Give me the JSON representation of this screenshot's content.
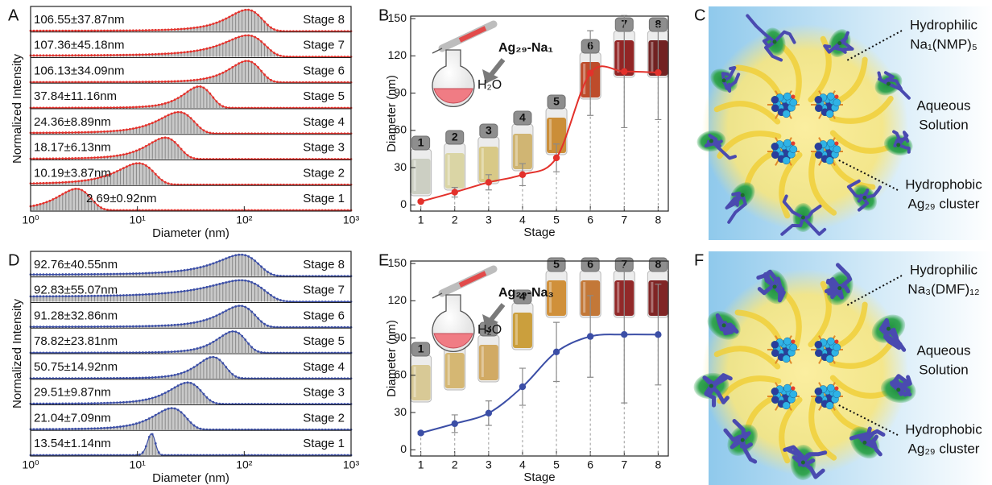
{
  "chart_data": [
    {
      "panel": "A",
      "type": "distribution",
      "color": "#e3312b",
      "xscale": "log",
      "xlim": [
        1,
        1000
      ],
      "xticks": [
        {
          "value": 1,
          "label": "10⁰"
        },
        {
          "value": 10,
          "label": "10¹"
        },
        {
          "value": 100,
          "label": "10²"
        },
        {
          "value": 1000,
          "label": "10³"
        }
      ],
      "xlabel": "Diameter (nm)",
      "ylabel": "Normalized Intensity",
      "series": [
        {
          "name": "Stage 8",
          "mean": 106.55,
          "sd": 37.87,
          "label": "106.55±37.87nm"
        },
        {
          "name": "Stage 7",
          "mean": 107.36,
          "sd": 45.18,
          "label": "107.36±45.18nm"
        },
        {
          "name": "Stage 6",
          "mean": 106.13,
          "sd": 34.09,
          "label": "106.13±34.09nm"
        },
        {
          "name": "Stage 5",
          "mean": 37.84,
          "sd": 11.16,
          "label": "37.84±11.16nm"
        },
        {
          "name": "Stage 4",
          "mean": 24.36,
          "sd": 8.89,
          "label": "24.36±8.89nm"
        },
        {
          "name": "Stage 3",
          "mean": 18.17,
          "sd": 6.13,
          "label": "18.17±6.13nm"
        },
        {
          "name": "Stage 2",
          "mean": 10.19,
          "sd": 3.87,
          "label": "10.19±3.87nm"
        },
        {
          "name": "Stage 1",
          "mean": 2.69,
          "sd": 0.92,
          "label": "2.69±0.92nm"
        }
      ]
    },
    {
      "panel": "B",
      "type": "line",
      "color": "#e3312b",
      "xlabel": "Stage",
      "ylabel": "Diameter (nm)",
      "x": [
        1,
        2,
        3,
        4,
        5,
        6,
        7,
        8
      ],
      "values": [
        2.69,
        10.19,
        18.17,
        24.36,
        37.84,
        106.13,
        107.36,
        106.55
      ],
      "errors": [
        0.92,
        3.87,
        6.13,
        8.89,
        11.16,
        34.09,
        45.18,
        37.87
      ],
      "xlim": [
        0.7,
        8.3
      ],
      "xticks": [
        1,
        2,
        3,
        4,
        5,
        6,
        7,
        8
      ],
      "ylim": [
        -5,
        152
      ],
      "yticks": [
        0,
        30,
        60,
        90,
        120,
        150
      ],
      "inset": {
        "precursor": "Ag₂₉-Na₁",
        "solvent": "H₂O"
      },
      "vial_colors": [
        "#c9ccbf",
        "#d8d29e",
        "#d6c67e",
        "#cdb068",
        "#c88628",
        "#b83e1a",
        "#8a1414",
        "#661010"
      ]
    },
    {
      "panel": "D",
      "type": "distribution",
      "color": "#3b4ea6",
      "xscale": "log",
      "xlim": [
        1,
        1000
      ],
      "xticks": [
        {
          "value": 1,
          "label": "10⁰"
        },
        {
          "value": 10,
          "label": "10¹"
        },
        {
          "value": 100,
          "label": "10²"
        },
        {
          "value": 1000,
          "label": "10³"
        }
      ],
      "xlabel": "Diameter (nm)",
      "ylabel": "Normalized Intensity",
      "series": [
        {
          "name": "Stage 8",
          "mean": 92.76,
          "sd": 40.55,
          "label": "92.76±40.55nm"
        },
        {
          "name": "Stage 7",
          "mean": 92.83,
          "sd": 55.07,
          "label": "92.83±55.07nm"
        },
        {
          "name": "Stage 6",
          "mean": 91.28,
          "sd": 32.86,
          "label": "91.28±32.86nm"
        },
        {
          "name": "Stage 5",
          "mean": 78.82,
          "sd": 23.81,
          "label": "78.82±23.81nm"
        },
        {
          "name": "Stage 4",
          "mean": 50.75,
          "sd": 14.92,
          "label": "50.75±14.92nm"
        },
        {
          "name": "Stage 3",
          "mean": 29.51,
          "sd": 9.87,
          "label": "29.51±9.87nm"
        },
        {
          "name": "Stage 2",
          "mean": 21.04,
          "sd": 7.09,
          "label": "21.04±7.09nm"
        },
        {
          "name": "Stage 1",
          "mean": 13.54,
          "sd": 1.14,
          "label": "13.54±1.14nm"
        }
      ]
    },
    {
      "panel": "E",
      "type": "line",
      "color": "#3b4ea6",
      "xlabel": "Stage",
      "ylabel": "Diameter (nm)",
      "x": [
        1,
        2,
        3,
        4,
        5,
        6,
        7,
        8
      ],
      "values": [
        13.54,
        21.04,
        29.51,
        50.75,
        78.82,
        91.28,
        92.83,
        92.76
      ],
      "errors": [
        1.14,
        7.09,
        9.87,
        14.92,
        23.81,
        32.86,
        55.07,
        40.55
      ],
      "xlim": [
        0.7,
        8.3
      ],
      "xticks": [
        1,
        2,
        3,
        4,
        5,
        6,
        7,
        8
      ],
      "ylim": [
        -5,
        152
      ],
      "yticks": [
        0,
        30,
        60,
        90,
        120,
        150
      ],
      "inset": {
        "precursor": "Ag₂₉-Na₃",
        "solvent": "H₂O"
      },
      "vial_colors": [
        "#d6c68e",
        "#d2b268",
        "#cea458",
        "#c8982e",
        "#cd882a",
        "#bf6e28",
        "#8a1818",
        "#761414"
      ]
    }
  ],
  "diagrams": [
    {
      "panel": "C",
      "ligand": [
        "Hydrophilic",
        "Na₁(NMP)₅"
      ],
      "medium": [
        "Aqueous",
        "Solution"
      ],
      "core": [
        "Hydrophobic",
        "Ag₂₉ cluster"
      ]
    },
    {
      "panel": "F",
      "ligand": [
        "Hydrophilic",
        "Na₃(DMF)₁₂"
      ],
      "medium": [
        "Aqueous",
        "Solution"
      ],
      "core": [
        "Hydrophobic",
        "Ag₂₉ cluster"
      ]
    }
  ]
}
